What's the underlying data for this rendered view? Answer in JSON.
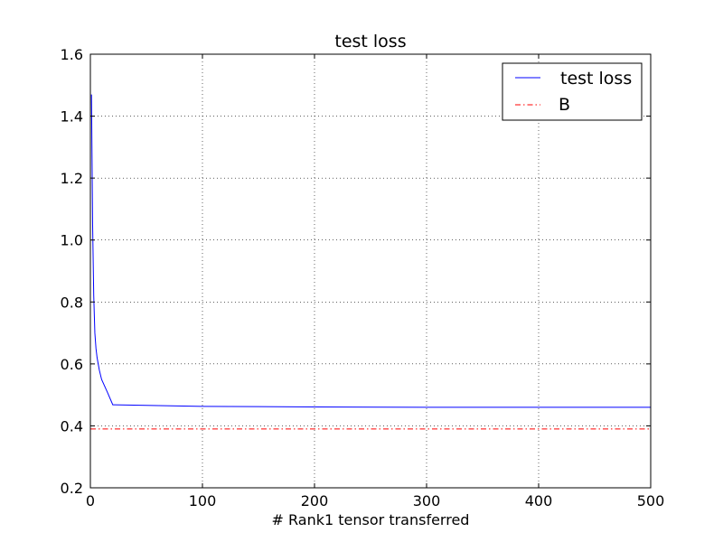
{
  "chart_data": {
    "type": "line",
    "title": "test loss",
    "xlabel": "# Rank1 tensor transferred",
    "ylabel": "",
    "xlim": [
      0,
      500
    ],
    "ylim": [
      0.2,
      1.6
    ],
    "xticks": [
      0,
      100,
      200,
      300,
      400,
      500
    ],
    "yticks": [
      0.2,
      0.4,
      0.6,
      0.8,
      1.0,
      1.2,
      1.4,
      1.6
    ],
    "xtick_labels": [
      "0",
      "100",
      "200",
      "300",
      "400",
      "500"
    ],
    "ytick_labels": [
      "0.2",
      "0.4",
      "0.6",
      "0.8",
      "1.0",
      "1.2",
      "1.4",
      "1.6"
    ],
    "grid": true,
    "legend_position": "top-right",
    "series": [
      {
        "name": "test loss",
        "color": "#0000ff",
        "style": "solid",
        "x": [
          1,
          2,
          3,
          4,
          5,
          6,
          8,
          10,
          15,
          20,
          50,
          100,
          150,
          200,
          300,
          400,
          500
        ],
        "y": [
          1.47,
          1.05,
          0.82,
          0.7,
          0.65,
          0.62,
          0.58,
          0.55,
          0.51,
          0.468,
          0.466,
          0.463,
          0.462,
          0.461,
          0.46,
          0.46,
          0.46
        ]
      },
      {
        "name": "B",
        "color": "#ff0000",
        "style": "dashdot",
        "x": [
          0,
          500
        ],
        "y": [
          0.39,
          0.39
        ]
      }
    ]
  }
}
